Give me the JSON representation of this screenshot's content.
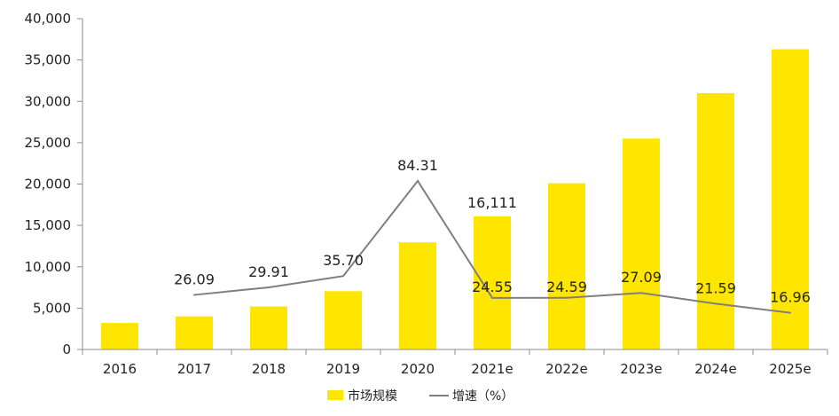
{
  "chart_data": {
    "type": "bar",
    "categories": [
      "2016",
      "2017",
      "2018",
      "2019",
      "2020",
      "2021e",
      "2022e",
      "2023e",
      "2024e",
      "2025e"
    ],
    "series": [
      {
        "name": "市场规模",
        "type": "bar",
        "color": "#FFE600",
        "values": [
          3200,
          4000,
          5200,
          7050,
          12950,
          16111,
          20100,
          25500,
          31000,
          36300
        ]
      },
      {
        "name": "增速（%）",
        "type": "line",
        "color": "#7F7F7F",
        "values": [
          null,
          26.09,
          29.91,
          35.7,
          84.31,
          24.55,
          24.59,
          27.09,
          21.59,
          16.96
        ]
      }
    ],
    "y_ticks": [
      "0",
      "5,000",
      "10,000",
      "15,000",
      "20,000",
      "25,000",
      "30,000",
      "35,000",
      "40,000"
    ],
    "ylim": [
      0,
      40000
    ],
    "data_labels": [
      {
        "text": "26.09",
        "series": 1,
        "index": 1
      },
      {
        "text": "29.91",
        "series": 1,
        "index": 2
      },
      {
        "text": "35.70",
        "series": 1,
        "index": 3
      },
      {
        "text": "84.31",
        "series": 1,
        "index": 4
      },
      {
        "text": "16,111",
        "series": 0,
        "index": 5
      },
      {
        "text": "24.55",
        "series": 1,
        "index": 5
      },
      {
        "text": "24.59",
        "series": 1,
        "index": 6
      },
      {
        "text": "27.09",
        "series": 1,
        "index": 7
      },
      {
        "text": "21.59",
        "series": 1,
        "index": 8
      },
      {
        "text": "16.96",
        "series": 1,
        "index": 9
      }
    ],
    "title": "",
    "xlabel": "",
    "ylabel": "",
    "grid": false,
    "legend_position": "bottom"
  }
}
